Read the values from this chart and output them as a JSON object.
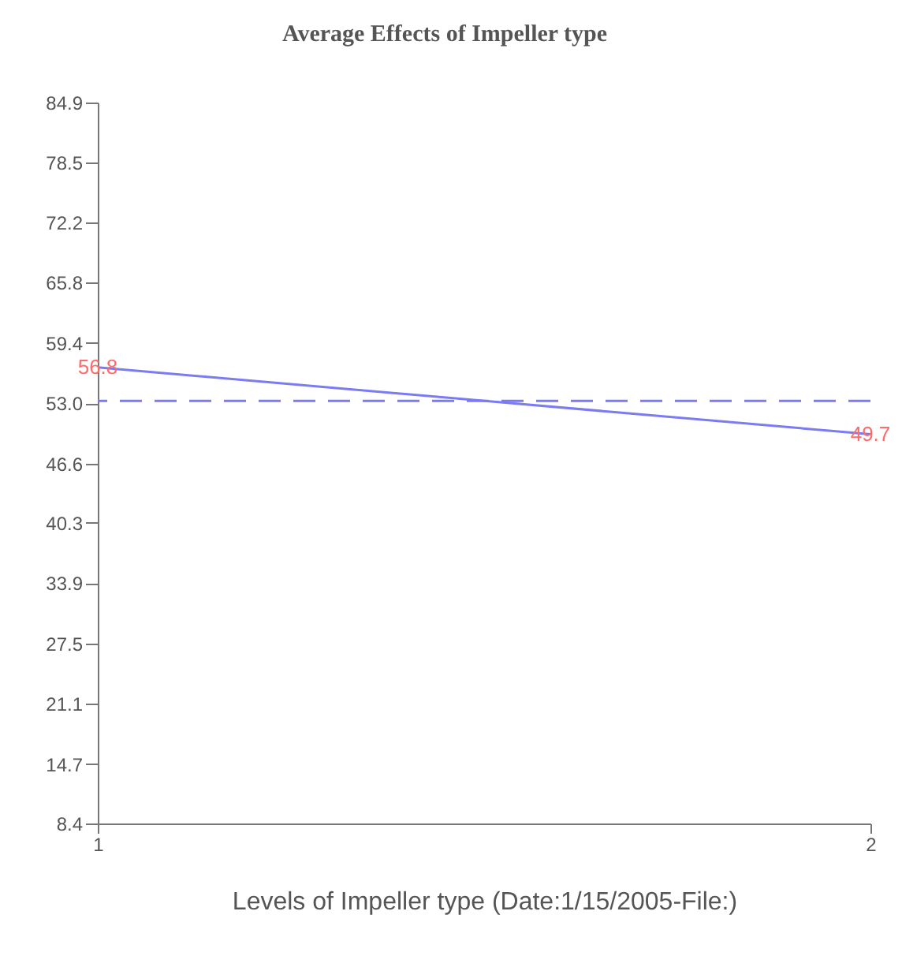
{
  "chart_data": {
    "type": "line",
    "title": "Average Effects of Impeller type",
    "xlabel": "Levels of Impeller type (Date:1/15/2005-File:)",
    "x": [
      1,
      2
    ],
    "series": [
      {
        "color": "#7b7bf2",
        "values": [
          56.8,
          49.7
        ]
      }
    ],
    "data_labels": true,
    "xlim": [
      1,
      2
    ],
    "xticks": [
      1,
      2
    ],
    "ylim": [
      8.4,
      84.9
    ],
    "yticks": [
      8.4,
      14.7,
      21.1,
      27.5,
      33.9,
      40.3,
      46.6,
      {
        "value": 53,
        "label": "53.0"
      },
      59.4,
      65.8,
      72.2,
      78.5,
      84.9
    ],
    "ref_lines": [
      {
        "axis": "y",
        "value": 53.25,
        "color": "#7b7bf2",
        "line_style": "dashed"
      }
    ],
    "grid": false,
    "marker": "none",
    "line_style": "solid"
  }
}
